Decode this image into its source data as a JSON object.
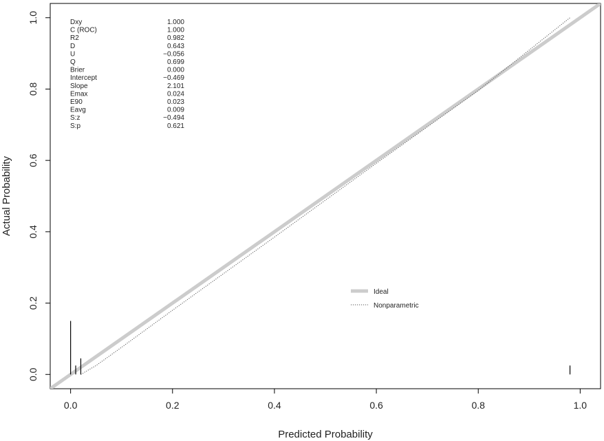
{
  "chart_data": {
    "type": "line",
    "xlabel": "Predicted Probability",
    "ylabel": "Actual Probability",
    "xlim": [
      -0.04,
      1.04
    ],
    "ylim": [
      -0.04,
      1.04
    ],
    "x_ticks": [
      "0.0",
      "0.2",
      "0.4",
      "0.6",
      "0.8",
      "1.0"
    ],
    "y_ticks": [
      "0.0",
      "0.2",
      "0.4",
      "0.6",
      "0.8",
      "1.0"
    ],
    "grid": false,
    "stats": [
      {
        "name": "Dxy",
        "value": "1.000"
      },
      {
        "name": "C (ROC)",
        "value": "1.000"
      },
      {
        "name": "R2",
        "value": "0.982"
      },
      {
        "name": "D",
        "value": "0.643"
      },
      {
        "name": "U",
        "value": "−0.056"
      },
      {
        "name": "Q",
        "value": "0.699"
      },
      {
        "name": "Brier",
        "value": "0.000"
      },
      {
        "name": "Intercept",
        "value": "−0.469"
      },
      {
        "name": "Slope",
        "value": "2.101"
      },
      {
        "name": "Emax",
        "value": "0.024"
      },
      {
        "name": "E90",
        "value": "0.023"
      },
      {
        "name": "Eavg",
        "value": "0.009"
      },
      {
        "name": "S:z",
        "value": "−0.494"
      },
      {
        "name": "S:p",
        "value": "0.621"
      }
    ],
    "series": [
      {
        "name": "Ideal",
        "style": "solid-thick",
        "color": "#cccccc",
        "x": [
          -0.04,
          1.04
        ],
        "y": [
          -0.04,
          1.04
        ]
      },
      {
        "name": "Nonparametric",
        "style": "dotted",
        "color": "#555555",
        "x": [
          0.02,
          0.05,
          0.1,
          0.2,
          0.4,
          0.6,
          0.8,
          0.98
        ],
        "y": [
          0.0,
          0.025,
          0.076,
          0.18,
          0.385,
          0.592,
          0.796,
          1.0
        ]
      }
    ],
    "rug": [
      {
        "x": 0.0,
        "height": 0.15
      },
      {
        "x": 0.01,
        "height": 0.025
      },
      {
        "x": 0.02,
        "height": 0.045
      },
      {
        "x": 0.98,
        "height": 0.025
      }
    ],
    "legend": {
      "position": "center-right"
    }
  }
}
